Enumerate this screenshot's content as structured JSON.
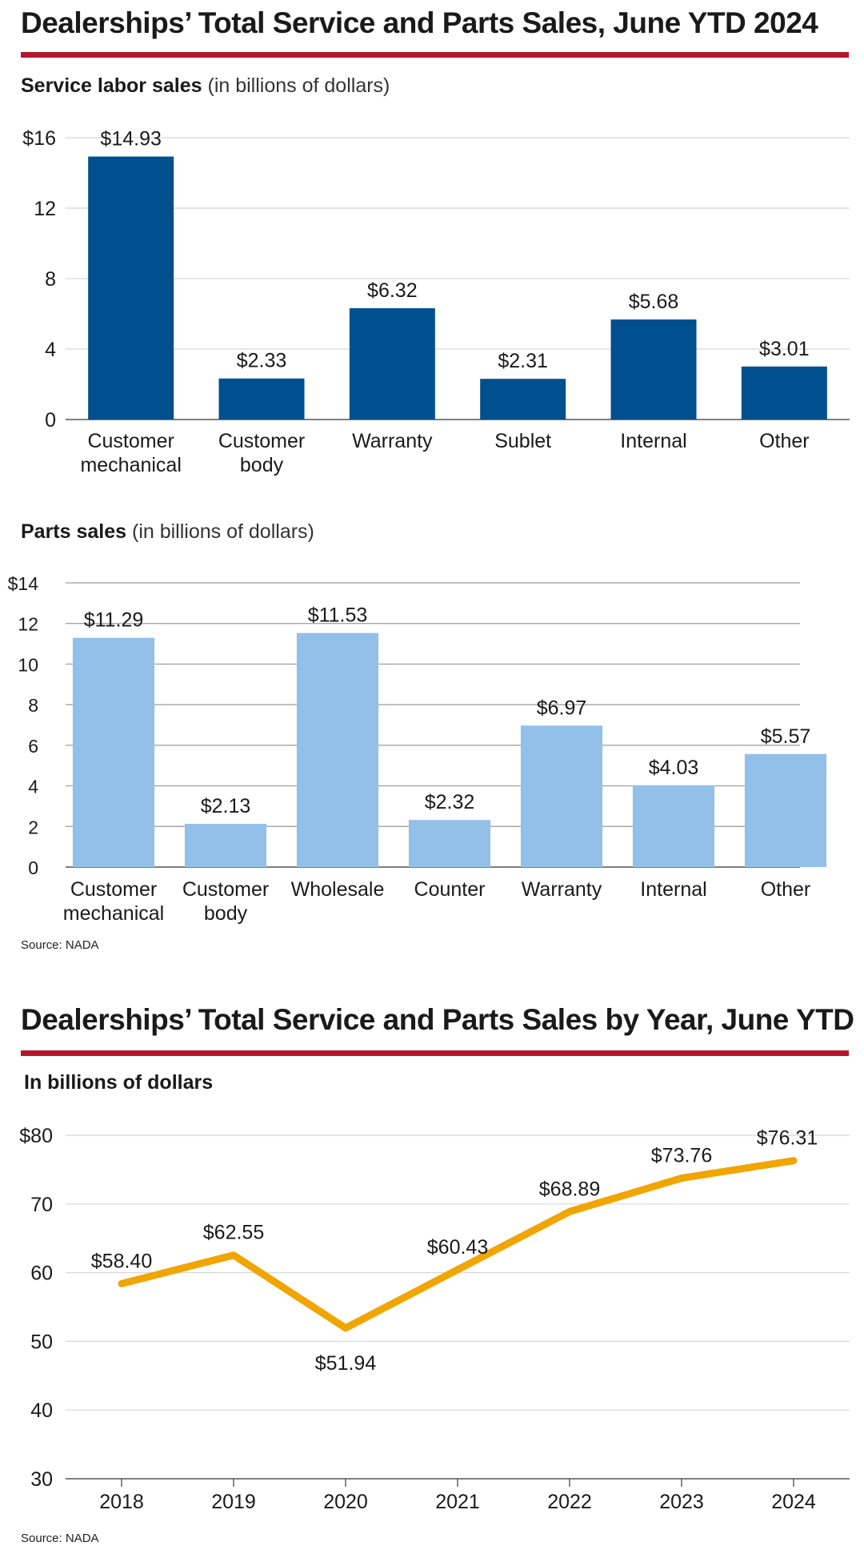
{
  "colors": {
    "accent_rule": "#b5162b",
    "labor_bar": "#00508f",
    "parts_bar": "#93c0e8",
    "line": "#f0a500",
    "grid_light": "#d8d8d8",
    "grid_dark": "#9a9a9a"
  },
  "section1": {
    "title": "Dealerships’ Total Service and Parts Sales, June YTD 2024",
    "source": "Source: NADA"
  },
  "section2": {
    "title": "Dealerships’ Total Service and Parts Sales by Year, June YTD",
    "source": "Source: NADA"
  },
  "chart_data": [
    {
      "id": "labor",
      "type": "bar",
      "title": "Service labor sales",
      "subtitle": "(in billions of dollars)",
      "categories": [
        [
          "Customer",
          "mechanical"
        ],
        [
          "Customer",
          "body"
        ],
        [
          "Warranty"
        ],
        [
          "Sublet"
        ],
        [
          "Internal"
        ],
        [
          "Other"
        ]
      ],
      "values": [
        14.93,
        2.33,
        6.32,
        2.31,
        5.68,
        3.01
      ],
      "value_labels": [
        "$14.93",
        "$2.33",
        "$6.32",
        "$2.31",
        "$5.68",
        "$3.01"
      ],
      "yticks": [
        0,
        4,
        8,
        12,
        16
      ],
      "ytick_labels": [
        "0",
        "4",
        "8",
        "12",
        "$16"
      ],
      "ylim": [
        0,
        16
      ],
      "xlabel": "",
      "ylabel": ""
    },
    {
      "id": "parts",
      "type": "bar",
      "title": "Parts sales",
      "subtitle": "(in billions of dollars)",
      "categories": [
        [
          "Customer",
          "mechanical"
        ],
        [
          "Customer",
          "body"
        ],
        [
          "Wholesale"
        ],
        [
          "Counter"
        ],
        [
          "Warranty"
        ],
        [
          "Internal"
        ],
        [
          "Other"
        ]
      ],
      "values": [
        11.29,
        2.13,
        11.53,
        2.32,
        6.97,
        4.03,
        5.57
      ],
      "value_labels": [
        "$11.29",
        "$2.13",
        "$11.53",
        "$2.32",
        "$6.97",
        "$4.03",
        "$5.57"
      ],
      "yticks": [
        0,
        2,
        4,
        6,
        8,
        10,
        12,
        14
      ],
      "ytick_labels": [
        "0",
        "2",
        "4",
        "6",
        "8",
        "10",
        "12",
        "$14"
      ],
      "ylim": [
        0,
        14
      ],
      "xlabel": "",
      "ylabel": ""
    },
    {
      "id": "yearly",
      "type": "line",
      "title": "In billions of dollars",
      "categories": [
        "2018",
        "2019",
        "2020",
        "2021",
        "2022",
        "2023",
        "2024"
      ],
      "series": [
        {
          "name": "Total service and parts sales",
          "values": [
            58.4,
            62.55,
            51.94,
            60.43,
            68.89,
            73.76,
            76.31
          ]
        }
      ],
      "value_labels": [
        "$58.40",
        "$62.55",
        "$51.94",
        "$60.43",
        "$68.89",
        "$73.76",
        "$76.31"
      ],
      "yticks": [
        30,
        40,
        50,
        60,
        70,
        80
      ],
      "ytick_labels": [
        "30",
        "40",
        "50",
        "60",
        "70",
        "$80"
      ],
      "ylim": [
        30,
        80
      ],
      "xlabel": "",
      "ylabel": ""
    }
  ]
}
